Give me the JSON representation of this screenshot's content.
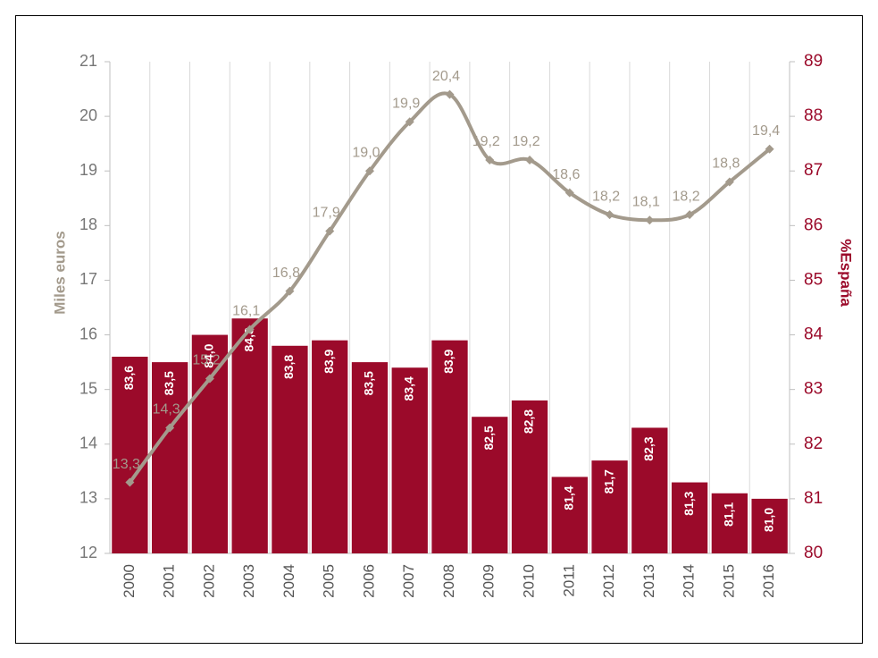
{
  "chart_data": {
    "type": "combo",
    "categories": [
      "2000",
      "2001",
      "2002",
      "2003",
      "2004",
      "2005",
      "2006",
      "2007",
      "2008",
      "2009",
      "2010",
      "2011",
      "2012",
      "2013",
      "2014",
      "2015",
      "2016"
    ],
    "ylabel": "Miles euros",
    "y2label": "%España",
    "ylim": [
      12,
      21
    ],
    "yticks": [
      12,
      13,
      14,
      15,
      16,
      17,
      18,
      19,
      20,
      21
    ],
    "y2lim": [
      80,
      89
    ],
    "y2ticks": [
      80,
      81,
      82,
      83,
      84,
      85,
      86,
      87,
      88,
      89
    ],
    "series": [
      {
        "type": "bar",
        "axis": "y2",
        "color": "#9b0a2a",
        "values": [
          83.6,
          83.5,
          84.0,
          84.3,
          83.8,
          83.9,
          83.5,
          83.4,
          83.9,
          82.5,
          82.8,
          81.4,
          81.7,
          82.3,
          81.3,
          81.1,
          81.0
        ],
        "value_labels": [
          "83,6",
          "83,5",
          "84,0",
          "84,3",
          "83,8",
          "83,9",
          "83,5",
          "83,4",
          "83,9",
          "82,5",
          "82,8",
          "81,4",
          "81,7",
          "82,3",
          "81,3",
          "81,1",
          "81,0"
        ]
      },
      {
        "type": "line",
        "axis": "y",
        "color": "#a39a8c",
        "values": [
          13.3,
          14.3,
          15.2,
          16.1,
          16.8,
          17.9,
          19.0,
          19.9,
          20.4,
          19.2,
          19.2,
          18.6,
          18.2,
          18.1,
          18.2,
          18.8,
          19.4
        ],
        "value_labels": [
          "13,3",
          "14,3",
          "15,2",
          "16,1",
          "16,8",
          "17,9",
          "19,0",
          "19,9",
          "20,4",
          "19,2",
          "19,2",
          "18,6",
          "18,2",
          "18,1",
          "18,2",
          "18,8",
          "19,4"
        ]
      }
    ]
  }
}
